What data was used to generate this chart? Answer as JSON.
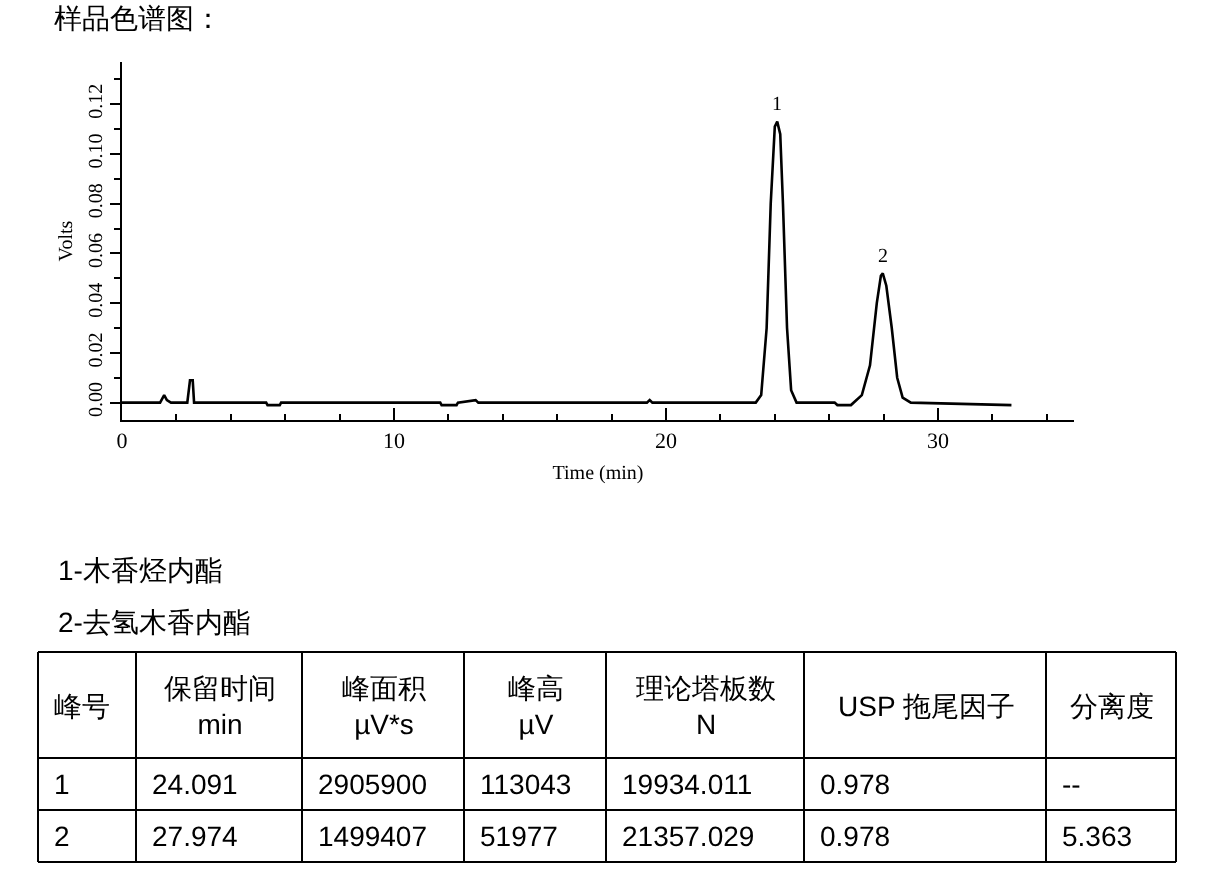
{
  "chart_data": {
    "type": "line",
    "title": "样品色谱图：",
    "xlabel": "Time (min)",
    "ylabel": "Volts",
    "x": [
      0,
      1.4,
      1.55,
      1.65,
      1.8,
      2.4,
      2.5,
      2.6,
      2.65,
      5.3,
      5.35,
      5.8,
      5.85,
      11.7,
      11.75,
      12.3,
      12.35,
      13,
      13.1,
      19.3,
      19.4,
      19.5,
      23.3,
      23.5,
      23.7,
      23.85,
      24.0,
      24.09,
      24.2,
      24.3,
      24.45,
      24.6,
      24.8,
      26.2,
      26.3,
      26.8,
      27.2,
      27.5,
      27.75,
      27.9,
      27.97,
      28.1,
      28.3,
      28.5,
      28.7,
      29,
      32.7
    ],
    "series": [
      {
        "color": "#000000",
        "values": [
          0,
          0,
          0.003,
          0.001,
          0,
          0,
          0.009,
          0.009,
          0,
          0,
          -0.001,
          -0.001,
          0,
          0,
          -0.001,
          -0.001,
          0,
          0.001,
          0,
          0,
          0.001,
          0,
          0,
          0.003,
          0.03,
          0.08,
          0.111,
          0.113,
          0.108,
          0.08,
          0.03,
          0.005,
          0,
          0,
          -0.001,
          -0.001,
          0.003,
          0.015,
          0.04,
          0.051,
          0.052,
          0.047,
          0.03,
          0.01,
          0.002,
          0,
          -0.001
        ]
      }
    ],
    "xlim": [
      0,
      35
    ],
    "ylim": [
      -0.007,
      0.137
    ],
    "xticks": [
      0,
      10,
      20,
      30
    ],
    "yticks": [
      {
        "value": 0,
        "label": "0.00"
      },
      {
        "value": 0.02,
        "label": "0.02"
      },
      {
        "value": 0.04,
        "label": "0.04"
      },
      {
        "value": 0.06,
        "label": "0.06"
      },
      {
        "value": 0.08,
        "label": "0.08"
      },
      {
        "value": 0.1,
        "label": "0.10"
      },
      {
        "value": 0.12,
        "label": "0.12"
      }
    ],
    "marker": "none",
    "line_style": "solid",
    "annotations": [
      {
        "text": "1",
        "x": 24.09,
        "y": 0.113
      },
      {
        "text": "2",
        "x": 27.97,
        "y": 0.052
      },
      "1-木香烃内酯",
      "2-去氢木香内酯",
      "峰号",
      "保留时间\nmin",
      "峰面积\nµV*s",
      "峰高\nµV",
      "理论塔板数\nN",
      "USP 拖尾因子",
      "分离度",
      "1",
      "24.091",
      "2905900",
      "113043",
      "19934.011",
      "0.978",
      "--",
      "2",
      "27.974",
      "1499407",
      "51977",
      "21357.029",
      "0.978",
      "5.363"
    ]
  }
}
